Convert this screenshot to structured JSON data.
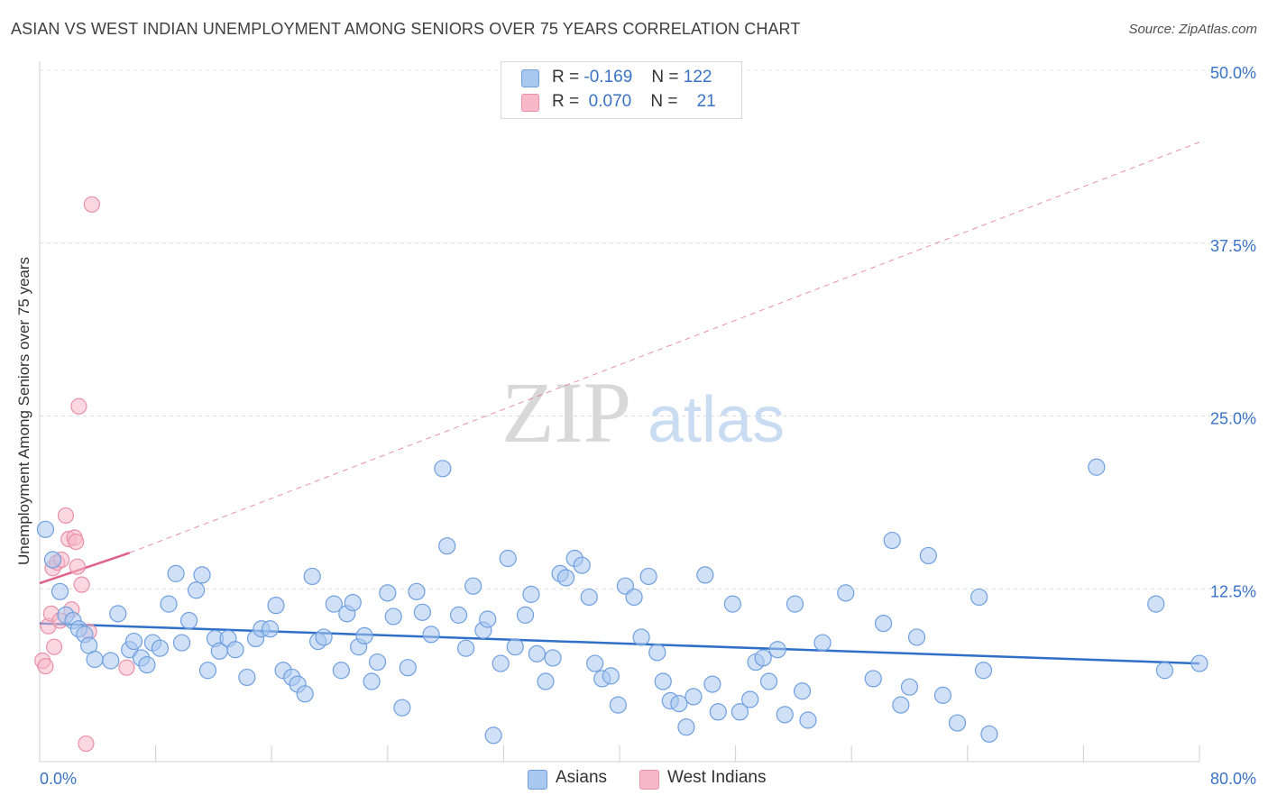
{
  "title": "ASIAN VS WEST INDIAN UNEMPLOYMENT AMONG SENIORS OVER 75 YEARS CORRELATION CHART",
  "source": "Source: ZipAtlas.com",
  "watermark": {
    "zip": "ZIP",
    "atlas": "atlas"
  },
  "legend": {
    "rows": [
      {
        "r_label": "R =",
        "r_value": "-0.169",
        "n_label": "N =",
        "n_value": "122",
        "color": "#a9c8f0",
        "border": "#6f9fe0"
      },
      {
        "r_label": "R =",
        "r_value": "0.070",
        "n_label": "N =",
        "n_value": "21",
        "color": "#f7b8c9",
        "border": "#e890a8"
      }
    ]
  },
  "bottom_legend": [
    {
      "label": "Asians",
      "color": "#a9c8f0",
      "border": "#6f9fe0"
    },
    {
      "label": "West Indians",
      "color": "#f7b8c9",
      "border": "#e890a8"
    }
  ],
  "chart_data": {
    "type": "scatter",
    "ylabel": "Unemployment Among Seniors over 75 years",
    "xlim": [
      0,
      80
    ],
    "ylim": [
      0,
      50
    ],
    "x_tick_labels": [
      "0.0%",
      "80.0%"
    ],
    "y_ticks": [
      12.5,
      25.0,
      37.5,
      50.0
    ],
    "y_tick_labels": [
      "12.5%",
      "25.0%",
      "37.5%",
      "50.0%"
    ],
    "grid": true,
    "colors": {
      "asians": "#6f9fe0",
      "asians_fill": "#a9c8f0",
      "west_indians": "#e890a8",
      "west_indians_fill": "#f7b8c9",
      "asians_trend": "#2f6fc8",
      "wi_trend": "#e0608a"
    },
    "series": [
      {
        "name": "Asians",
        "trend": {
          "x": [
            0,
            80
          ],
          "y": [
            10.0,
            7.1
          ]
        },
        "points": [
          [
            0.4,
            16.8
          ],
          [
            0.9,
            14.6
          ],
          [
            1.4,
            12.3
          ],
          [
            1.8,
            10.6
          ],
          [
            2.3,
            10.2
          ],
          [
            2.7,
            9.6
          ],
          [
            3.1,
            9.2
          ],
          [
            3.4,
            8.4
          ],
          [
            3.8,
            7.4
          ],
          [
            4.9,
            7.3
          ],
          [
            5.4,
            10.7
          ],
          [
            6.2,
            8.1
          ],
          [
            6.5,
            8.7
          ],
          [
            7.0,
            7.5
          ],
          [
            7.4,
            7.0
          ],
          [
            7.8,
            8.6
          ],
          [
            8.3,
            8.2
          ],
          [
            8.9,
            11.4
          ],
          [
            9.4,
            13.6
          ],
          [
            9.8,
            8.6
          ],
          [
            10.3,
            10.2
          ],
          [
            10.8,
            12.4
          ],
          [
            11.2,
            13.5
          ],
          [
            11.6,
            6.6
          ],
          [
            12.1,
            8.9
          ],
          [
            12.4,
            8.0
          ],
          [
            13.0,
            8.9
          ],
          [
            13.5,
            8.1
          ],
          [
            14.3,
            6.1
          ],
          [
            14.9,
            8.9
          ],
          [
            15.3,
            9.6
          ],
          [
            15.9,
            9.6
          ],
          [
            16.3,
            11.3
          ],
          [
            16.8,
            6.6
          ],
          [
            17.4,
            6.1
          ],
          [
            17.8,
            5.6
          ],
          [
            18.3,
            4.9
          ],
          [
            18.8,
            13.4
          ],
          [
            19.2,
            8.7
          ],
          [
            19.6,
            9.0
          ],
          [
            20.3,
            11.4
          ],
          [
            20.8,
            6.6
          ],
          [
            21.2,
            10.7
          ],
          [
            21.6,
            11.5
          ],
          [
            22.0,
            8.3
          ],
          [
            22.4,
            9.1
          ],
          [
            22.9,
            5.8
          ],
          [
            23.3,
            7.2
          ],
          [
            24.0,
            12.2
          ],
          [
            24.4,
            10.5
          ],
          [
            25.0,
            3.9
          ],
          [
            25.4,
            6.8
          ],
          [
            26.0,
            12.3
          ],
          [
            26.4,
            10.8
          ],
          [
            27.0,
            9.2
          ],
          [
            27.8,
            21.2
          ],
          [
            28.1,
            15.6
          ],
          [
            28.9,
            10.6
          ],
          [
            29.4,
            8.2
          ],
          [
            29.9,
            12.7
          ],
          [
            30.6,
            9.5
          ],
          [
            30.9,
            10.3
          ],
          [
            31.3,
            1.9
          ],
          [
            31.8,
            7.1
          ],
          [
            32.3,
            14.7
          ],
          [
            32.8,
            8.3
          ],
          [
            33.5,
            10.6
          ],
          [
            33.9,
            12.1
          ],
          [
            34.3,
            7.8
          ],
          [
            34.9,
            5.8
          ],
          [
            35.4,
            7.5
          ],
          [
            35.9,
            13.6
          ],
          [
            36.3,
            13.3
          ],
          [
            36.9,
            14.7
          ],
          [
            37.4,
            14.2
          ],
          [
            37.9,
            11.9
          ],
          [
            38.3,
            7.1
          ],
          [
            38.8,
            6.0
          ],
          [
            39.4,
            6.2
          ],
          [
            39.9,
            4.1
          ],
          [
            40.4,
            12.7
          ],
          [
            41.0,
            11.9
          ],
          [
            41.5,
            9.0
          ],
          [
            42.0,
            13.4
          ],
          [
            42.6,
            7.9
          ],
          [
            43.0,
            5.8
          ],
          [
            43.5,
            4.4
          ],
          [
            44.1,
            4.2
          ],
          [
            44.6,
            2.5
          ],
          [
            45.1,
            4.7
          ],
          [
            45.9,
            13.5
          ],
          [
            46.4,
            5.6
          ],
          [
            46.8,
            3.6
          ],
          [
            47.8,
            11.4
          ],
          [
            48.3,
            3.6
          ],
          [
            49.0,
            4.5
          ],
          [
            49.4,
            7.2
          ],
          [
            49.9,
            7.5
          ],
          [
            50.3,
            5.8
          ],
          [
            50.9,
            8.1
          ],
          [
            51.4,
            3.4
          ],
          [
            52.1,
            11.4
          ],
          [
            52.6,
            5.1
          ],
          [
            53.0,
            3.0
          ],
          [
            54.0,
            8.6
          ],
          [
            55.6,
            12.2
          ],
          [
            57.5,
            6.0
          ],
          [
            58.2,
            10.0
          ],
          [
            58.8,
            16.0
          ],
          [
            59.4,
            4.1
          ],
          [
            60.0,
            5.4
          ],
          [
            60.5,
            9.0
          ],
          [
            61.3,
            14.9
          ],
          [
            62.3,
            4.8
          ],
          [
            63.3,
            2.8
          ],
          [
            64.8,
            11.9
          ],
          [
            65.1,
            6.6
          ],
          [
            65.5,
            2.0
          ],
          [
            72.9,
            21.3
          ],
          [
            77.0,
            11.4
          ],
          [
            77.6,
            6.6
          ],
          [
            80.0,
            7.1
          ]
        ]
      },
      {
        "name": "West Indians",
        "trend": {
          "x": [
            0,
            6.2
          ],
          "y": [
            12.9,
            15.1
          ],
          "extension": {
            "x": [
              6.2,
              80
            ],
            "y": [
              15.1,
              44.8
            ]
          }
        },
        "points": [
          [
            0.2,
            7.3
          ],
          [
            0.4,
            6.9
          ],
          [
            0.6,
            9.8
          ],
          [
            0.8,
            10.7
          ],
          [
            0.9,
            14.0
          ],
          [
            1.0,
            8.3
          ],
          [
            1.2,
            14.4
          ],
          [
            1.4,
            10.2
          ],
          [
            1.5,
            14.6
          ],
          [
            1.8,
            17.8
          ],
          [
            2.0,
            16.1
          ],
          [
            2.2,
            11.0
          ],
          [
            2.4,
            16.2
          ],
          [
            2.5,
            15.9
          ],
          [
            2.6,
            14.1
          ],
          [
            2.7,
            25.7
          ],
          [
            2.9,
            12.8
          ],
          [
            3.2,
            1.3
          ],
          [
            3.4,
            9.4
          ],
          [
            3.6,
            40.3
          ],
          [
            6.0,
            6.8
          ]
        ]
      }
    ]
  }
}
